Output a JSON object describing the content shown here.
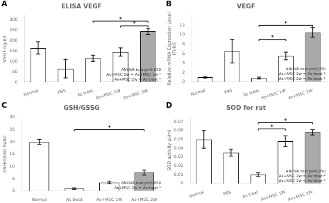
{
  "chart_data": [
    {
      "type": "bar",
      "panel_label": "A",
      "title": "ELISA VEGF",
      "ylabel": "VEGF ng/ml",
      "categories": [
        "Normal",
        "PBS",
        "As treat",
        "As+MSC 1W",
        "As+MSC 2W"
      ],
      "values": [
        165,
        65,
        115,
        145,
        245
      ],
      "errors": [
        30,
        45,
        15,
        20,
        15
      ],
      "colors": [
        "white",
        "white",
        "white",
        "white",
        "darkgray"
      ],
      "ylim": [
        0,
        320
      ],
      "yticks": [
        0,
        50,
        100,
        150,
        200,
        250,
        300
      ],
      "grid": false,
      "annotation": "ANOVA test p=0.050\nAs+MSC 2w = As+MSC 1w *\nAs+MSC 2w = As treat *",
      "significance": [
        {
          "x1": "As+MSC 1W",
          "x2": "As+MSC 2W",
          "y": 272,
          "label": "*"
        },
        {
          "x1": "As treat",
          "x2": "As+MSC 2W",
          "y": 295,
          "label": "*"
        }
      ]
    },
    {
      "type": "bar",
      "panel_label": "B",
      "title": "VEGF",
      "ylabel": "Relative mRNA Expression Level\n(Fold)",
      "categories": [
        "Normal",
        "PBS",
        "As treat",
        "As+MSC 1W",
        "As+MSC 2W"
      ],
      "values": [
        1.0,
        6.5,
        0.8,
        5.5,
        10.5
      ],
      "errors": [
        0.2,
        2.5,
        0.2,
        0.8,
        1.0
      ],
      "colors": [
        "white",
        "white",
        "white",
        "white",
        "darkgray"
      ],
      "ylim": [
        0,
        14
      ],
      "yticks": [
        0,
        2,
        4,
        6,
        8,
        10,
        12
      ],
      "grid": false,
      "annotation": "ANOVA test p=0.050\nAs+MSC 2w = As treat *\nAs+MSC 2w = As treat *",
      "significance": [
        {
          "x1": "As treat",
          "x2": "As+MSC 1W",
          "y": 9.0,
          "label": "*"
        },
        {
          "x1": "As treat",
          "x2": "As+MSC 2W",
          "y": 12.0,
          "label": "*"
        }
      ]
    },
    {
      "type": "bar",
      "panel_label": "C",
      "title": "GSH/GSSG",
      "ylabel": "GSH/GSSG Ratio",
      "categories": [
        "Normal",
        "As treat",
        "As+MSC 1W",
        "As+MSC 2W"
      ],
      "values": [
        20,
        1.0,
        3.5,
        7.5
      ],
      "errors": [
        1.0,
        0.3,
        0.5,
        1.0
      ],
      "colors": [
        "white",
        "white",
        "white",
        "darkgray"
      ],
      "ylim": [
        0,
        30
      ],
      "yticks": [
        0,
        5,
        10,
        15,
        20,
        25,
        30
      ],
      "grid": false,
      "annotation": "ANOVA test p=0.050\nAs+MSC 2w = As treat *",
      "significance": [
        {
          "x1": "As treat",
          "x2": "As+MSC 2W",
          "y": 25,
          "label": "*"
        }
      ]
    },
    {
      "type": "bar",
      "panel_label": "D",
      "title": "SOD for rat",
      "ylabel": "SOD activity μl/ml",
      "categories": [
        "Normal",
        "PBS",
        "As treat",
        "As+MSC 1W",
        "As+MSC 2W"
      ],
      "values": [
        0.05,
        0.035,
        0.01,
        0.048,
        0.058
      ],
      "errors": [
        0.01,
        0.004,
        0.002,
        0.006,
        0.003
      ],
      "colors": [
        "white",
        "white",
        "white",
        "white",
        "darkgray"
      ],
      "ylim": [
        0,
        0.075
      ],
      "yticks": [
        0,
        0.01,
        0.02,
        0.03,
        0.04,
        0.05,
        0.06,
        0.07
      ],
      "grid": false,
      "annotation": "ANOVA test p=0.050\nAs+MSC 2w = As treat *\nAs+MSC 2w = As treat *",
      "significance": [
        {
          "x1": "As treat",
          "x2": "As+MSC 1W",
          "y": 0.062,
          "label": "*"
        },
        {
          "x1": "As treat",
          "x2": "As+MSC 2W",
          "y": 0.069,
          "label": "*"
        }
      ]
    }
  ]
}
